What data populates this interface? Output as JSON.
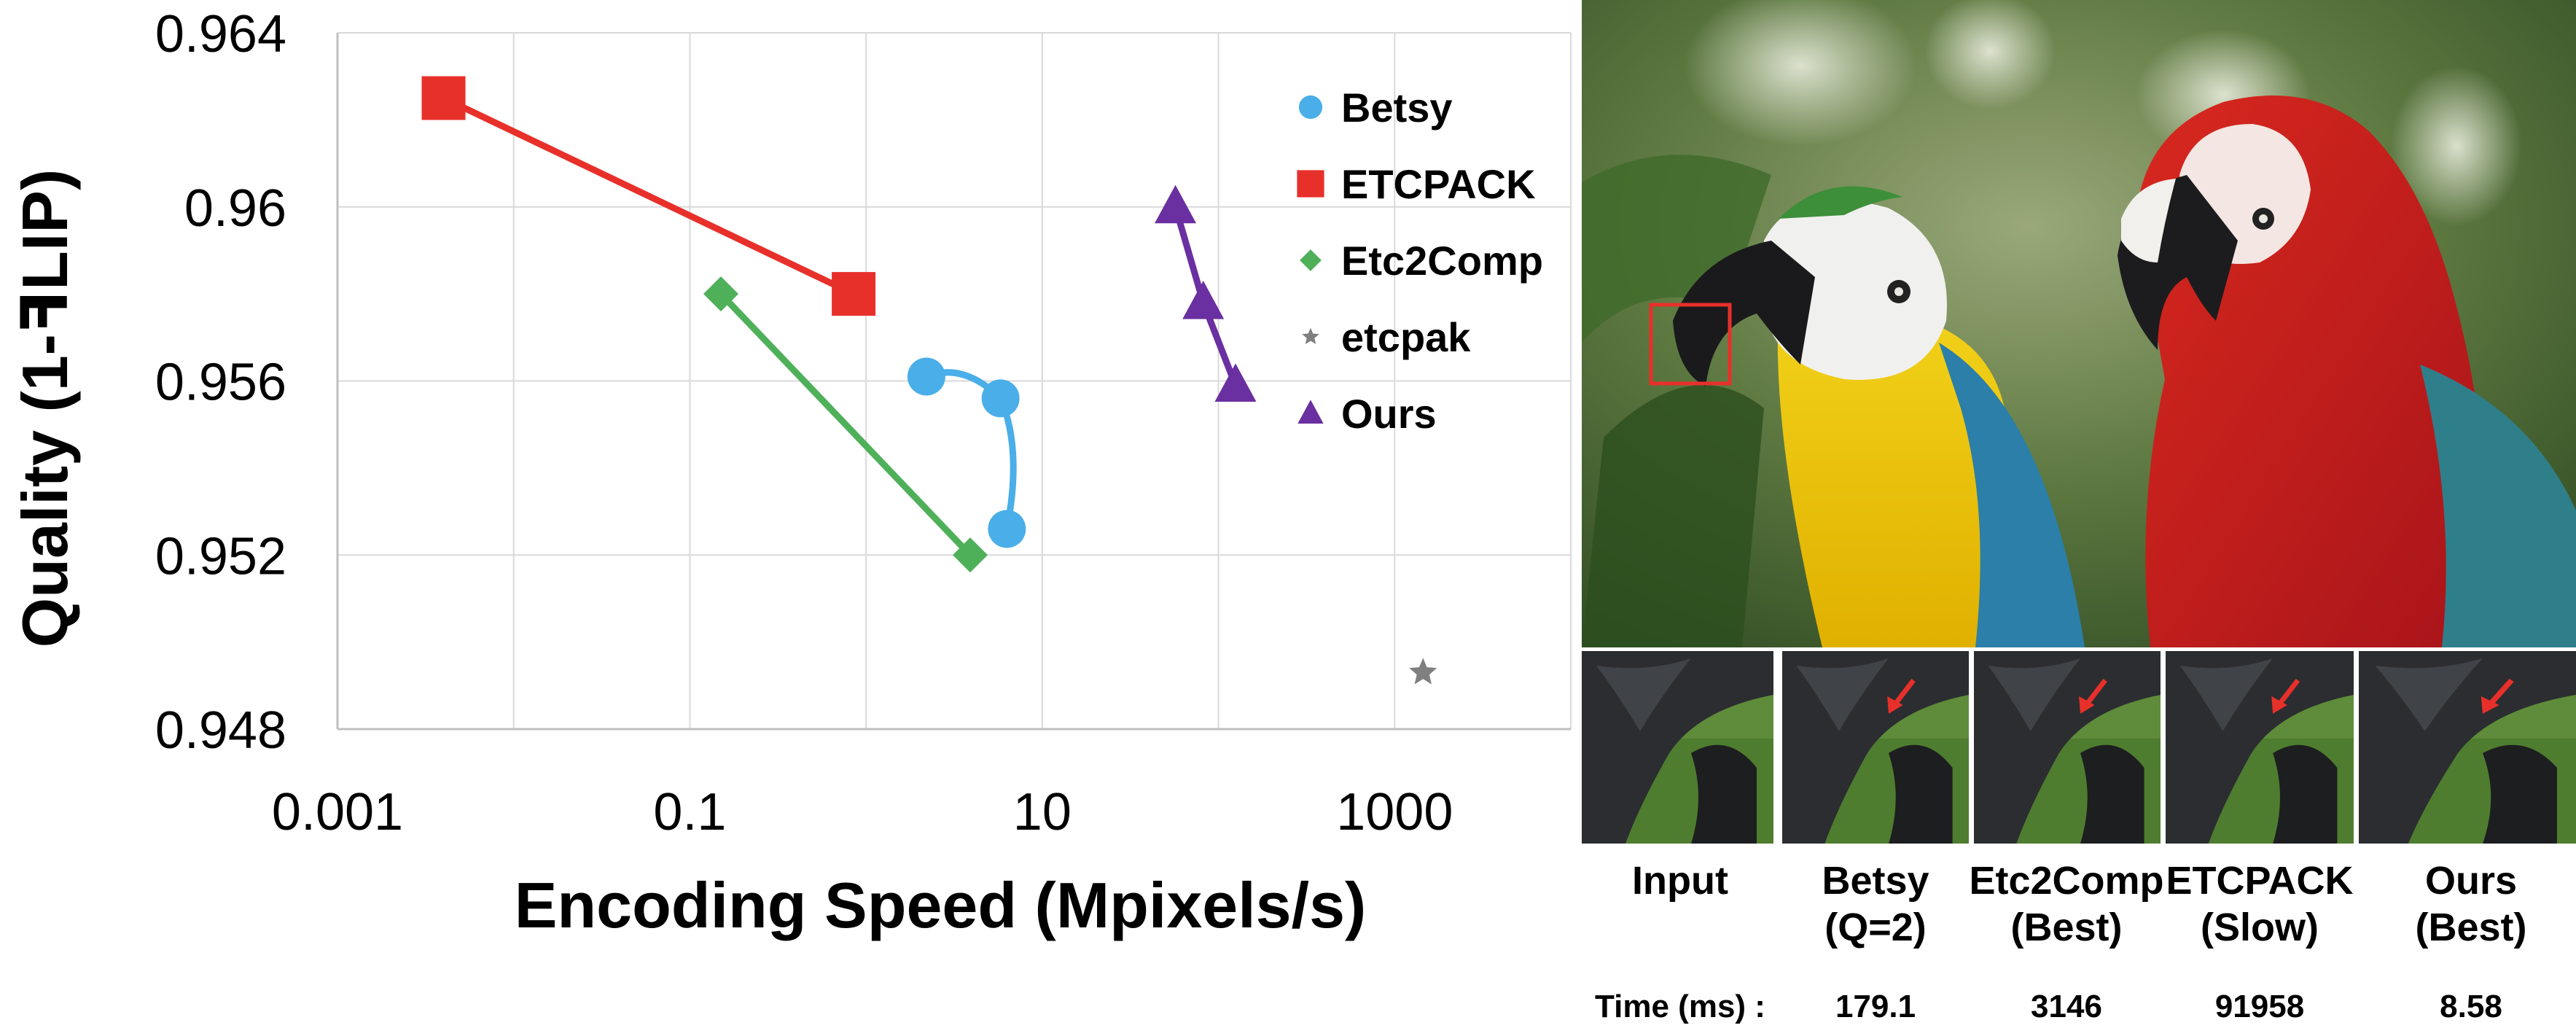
{
  "chart_data": {
    "type": "line",
    "xlabel": "Encoding Speed (Mpixels/s)",
    "ylabel": "Quality (1-ꟻLIP)",
    "x_scale": "log",
    "xlim": [
      0.001,
      10000
    ],
    "ylim": [
      0.948,
      0.964
    ],
    "x_ticks": [
      "0.001",
      "0.1",
      "10",
      "1000"
    ],
    "y_ticks": [
      "0.948",
      "0.952",
      "0.956",
      "0.96",
      "0.964"
    ],
    "grid": true,
    "legend_position": "right",
    "series": [
      {
        "name": "Betsy",
        "marker": "circle",
        "color": "#4aaee8",
        "points": [
          [
            2.2,
            0.9561
          ],
          [
            5.8,
            0.9556
          ],
          [
            6.3,
            0.9526
          ]
        ]
      },
      {
        "name": "ETCPACK",
        "marker": "square",
        "color": "#e8302a",
        "points": [
          [
            0.004,
            0.9625
          ],
          [
            0.85,
            0.958
          ]
        ]
      },
      {
        "name": "Etc2Comp",
        "marker": "diamond",
        "color": "#4fb05a",
        "points": [
          [
            0.15,
            0.958
          ],
          [
            3.9,
            0.952
          ]
        ]
      },
      {
        "name": "etcpak",
        "marker": "star",
        "color": "#7f7f7f",
        "points": [
          [
            1450,
            0.9493
          ]
        ]
      },
      {
        "name": "Ours",
        "marker": "triangle",
        "color": "#6a2fa0",
        "points": [
          [
            57,
            0.96
          ],
          [
            82,
            0.9578
          ],
          [
            125,
            0.9559
          ]
        ]
      }
    ]
  },
  "panel": {
    "captions": [
      {
        "line1": "Input",
        "line2": "",
        "time": "Time (ms) :"
      },
      {
        "line1": "Betsy",
        "line2": "(Q=2)",
        "time": "179.1"
      },
      {
        "line1": "Etc2Comp",
        "line2": "(Best)",
        "time": "3146"
      },
      {
        "line1": "ETCPACK",
        "line2": "(Slow)",
        "time": "91958"
      },
      {
        "line1": "Ours",
        "line2": "(Best)",
        "time": "8.58"
      }
    ]
  }
}
